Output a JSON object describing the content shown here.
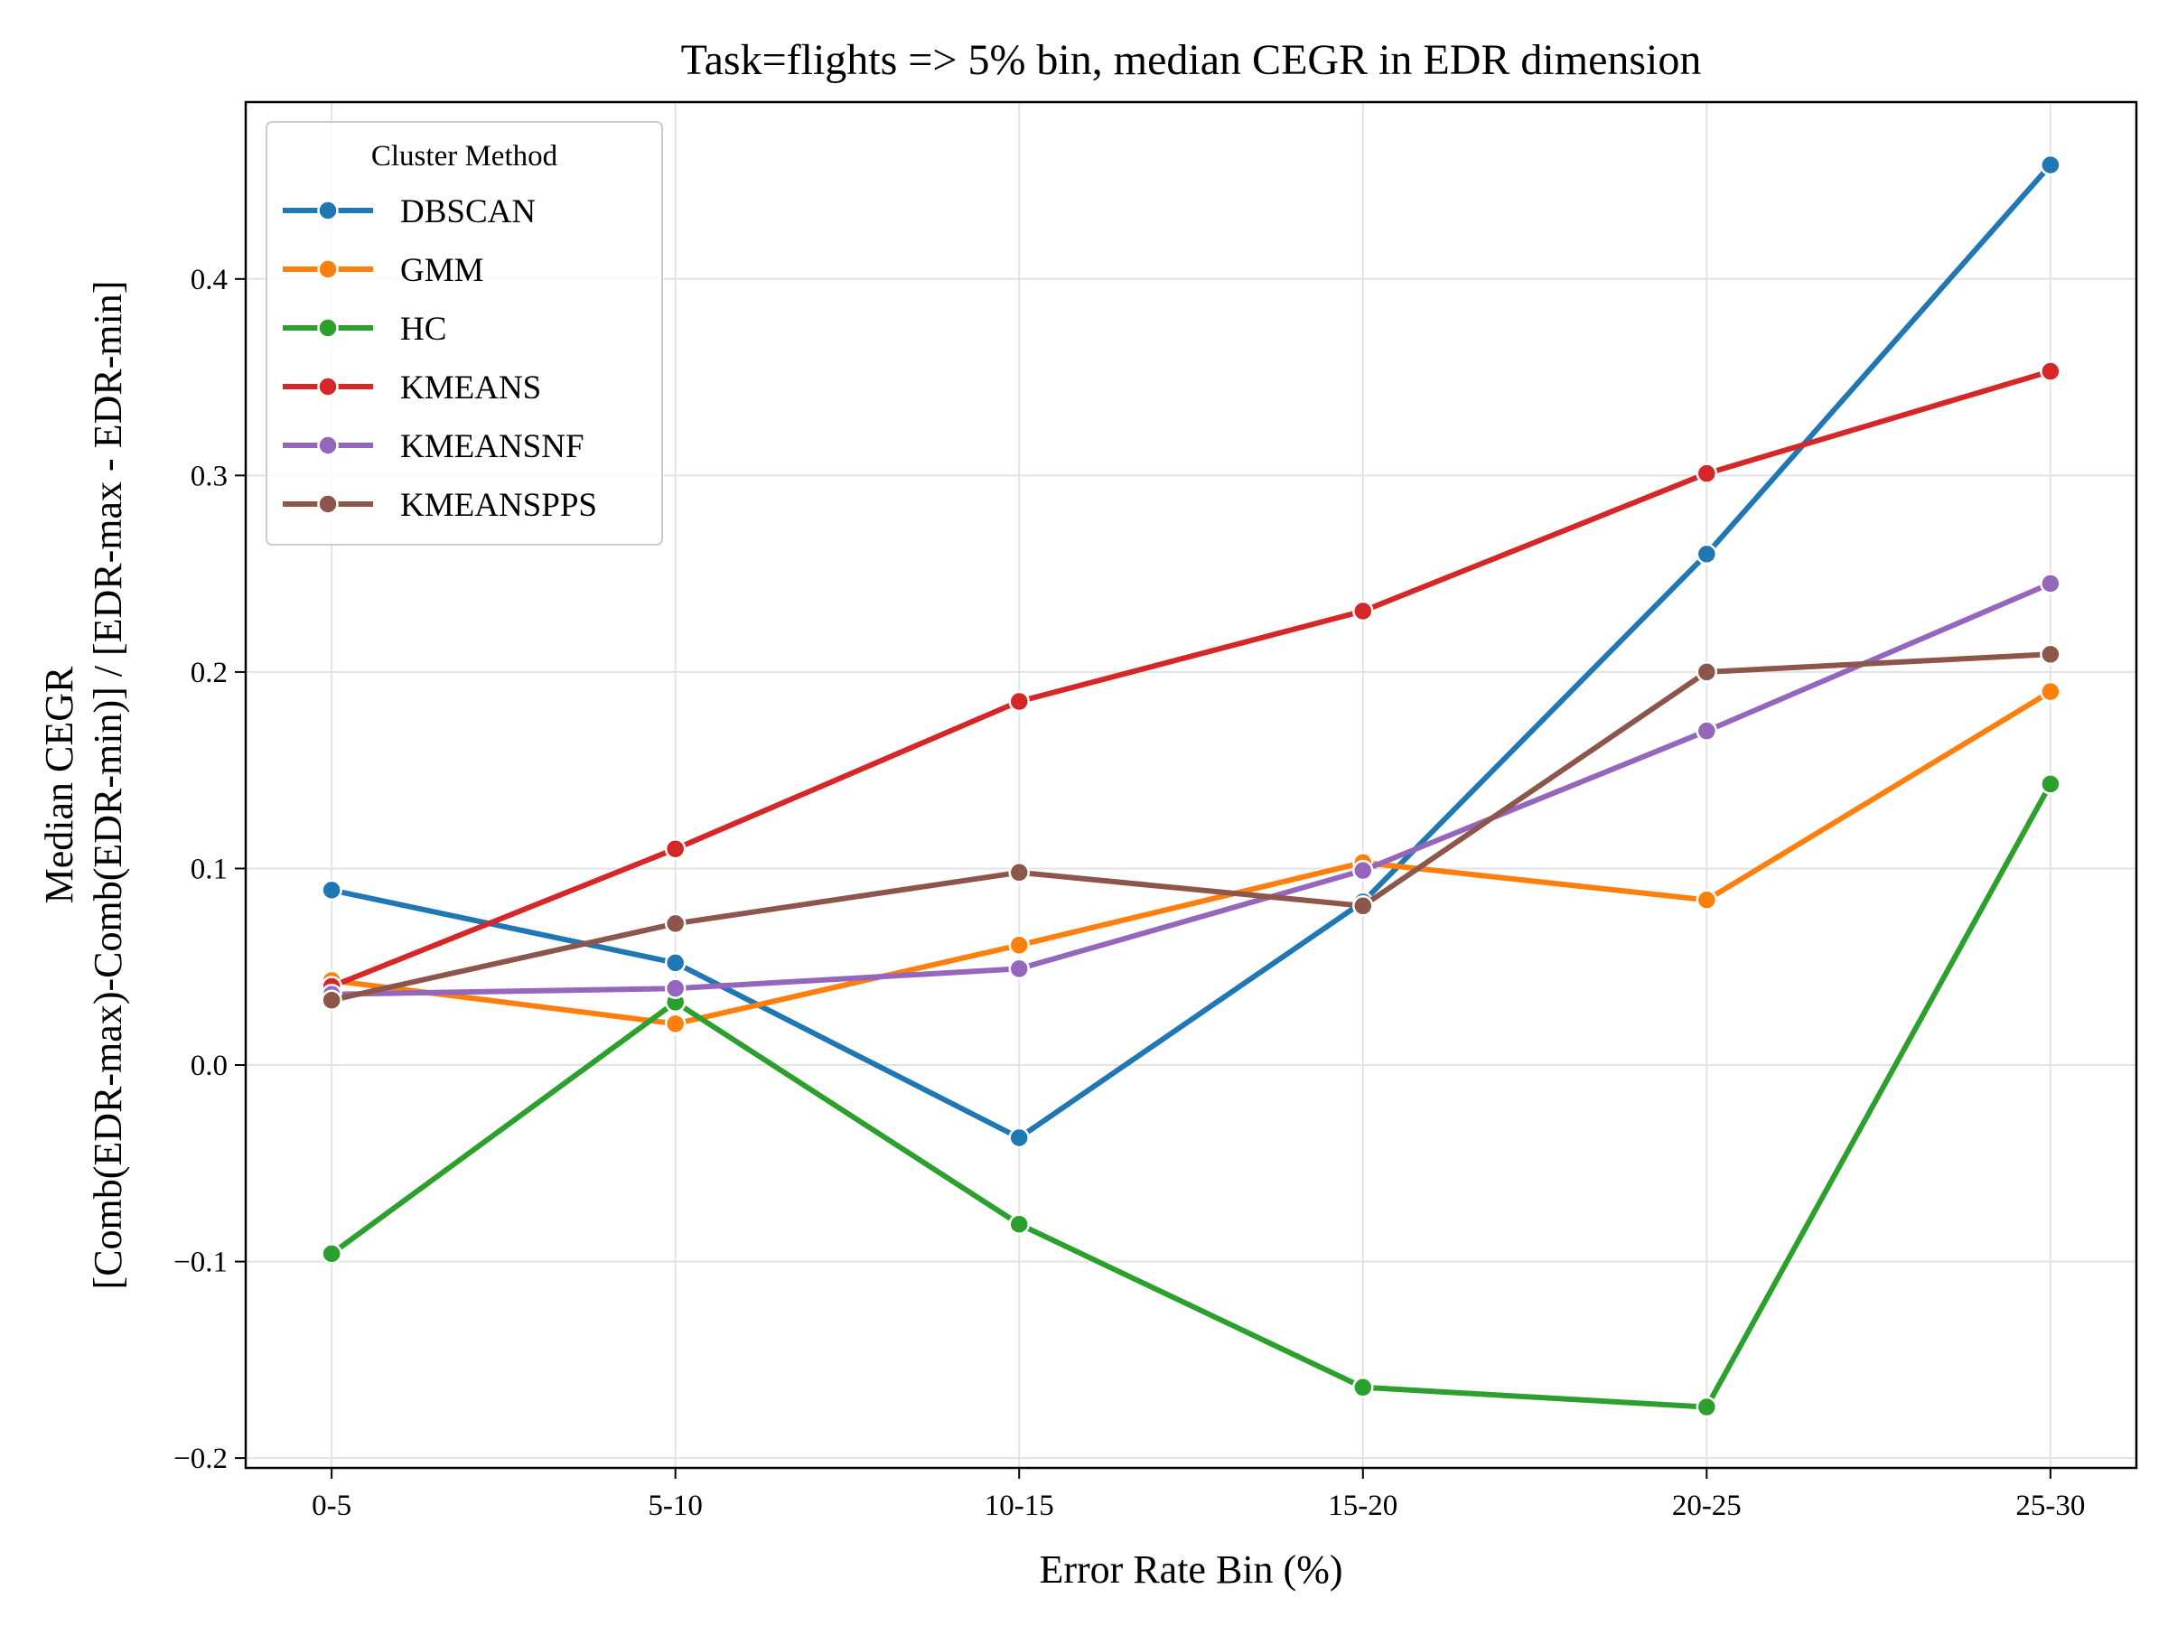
{
  "chart_data": {
    "type": "line",
    "title": "Task=flights => 5% bin, median CEGR in EDR dimension",
    "xlabel": "Error Rate Bin (%)",
    "ylabel_lines": [
      "Median CEGR",
      "[Comb(EDR-max)-Comb(EDR-min)] / [EDR-max - EDR-min]"
    ],
    "categories": [
      "0-5",
      "5-10",
      "10-15",
      "15-20",
      "20-25",
      "25-30"
    ],
    "ylim": [
      -0.205,
      0.49
    ],
    "yticks": [
      -0.2,
      -0.1,
      0.0,
      0.1,
      0.2,
      0.3,
      0.4
    ],
    "ytick_labels": [
      "−0.2",
      "−0.1",
      "0.0",
      "0.1",
      "0.2",
      "0.3",
      "0.4"
    ],
    "grid": true,
    "legend": {
      "title": "Cluster Method",
      "placement": "upper-left"
    },
    "series": [
      {
        "name": "DBSCAN",
        "color": "#1f77b4",
        "values": [
          0.089,
          0.052,
          -0.037,
          0.083,
          0.26,
          0.458
        ]
      },
      {
        "name": "GMM",
        "color": "#ff7f0e",
        "values": [
          0.043,
          0.021,
          0.061,
          0.103,
          0.084,
          0.19
        ]
      },
      {
        "name": "HC",
        "color": "#2ca02c",
        "values": [
          -0.096,
          0.032,
          -0.081,
          -0.164,
          -0.174,
          0.143
        ]
      },
      {
        "name": "KMEANS",
        "color": "#d62728",
        "values": [
          0.04,
          0.11,
          0.185,
          0.231,
          0.301,
          0.353
        ]
      },
      {
        "name": "KMEANSNF",
        "color": "#9467bd",
        "values": [
          0.036,
          0.039,
          0.049,
          0.099,
          0.17,
          0.245
        ]
      },
      {
        "name": "KMEANSPPS",
        "color": "#8c564b",
        "values": [
          0.033,
          0.072,
          0.098,
          0.081,
          0.2,
          0.209
        ]
      }
    ]
  }
}
